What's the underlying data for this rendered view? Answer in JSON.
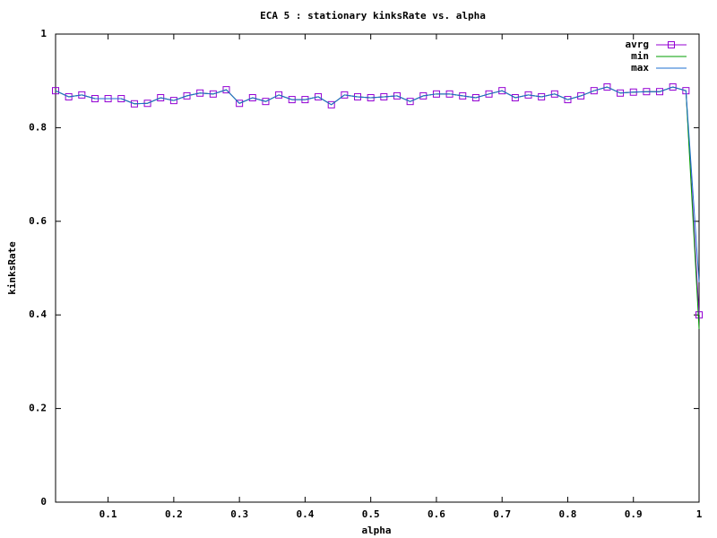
{
  "chart_data": {
    "type": "line",
    "title": "ECA 5 : stationary kinksRate vs. alpha",
    "x_label": "alpha",
    "y_label": "kinksRate",
    "x": [
      0.02,
      0.04,
      0.06,
      0.08,
      0.1,
      0.12,
      0.14,
      0.16,
      0.18,
      0.2,
      0.22,
      0.24,
      0.26,
      0.28,
      0.3,
      0.32,
      0.34,
      0.36,
      0.38,
      0.4,
      0.42,
      0.44,
      0.46,
      0.48,
      0.5,
      0.52,
      0.54,
      0.56,
      0.58,
      0.6,
      0.62,
      0.64,
      0.66,
      0.68,
      0.7,
      0.72,
      0.74,
      0.76,
      0.78,
      0.8,
      0.82,
      0.84,
      0.86,
      0.88,
      0.9,
      0.92,
      0.94,
      0.96,
      0.98,
      1
    ],
    "series": [
      {
        "name": "avrg",
        "color": "#9400d3",
        "marker": "square",
        "values": [
          0.879,
          0.866,
          0.87,
          0.862,
          0.862,
          0.862,
          0.851,
          0.852,
          0.864,
          0.858,
          0.868,
          0.874,
          0.872,
          0.881,
          0.852,
          0.864,
          0.856,
          0.87,
          0.86,
          0.86,
          0.866,
          0.849,
          0.87,
          0.866,
          0.864,
          0.866,
          0.868,
          0.856,
          0.868,
          0.872,
          0.872,
          0.868,
          0.864,
          0.872,
          0.879,
          0.864,
          0.87,
          0.866,
          0.872,
          0.86,
          0.868,
          0.879,
          0.887,
          0.874,
          0.876,
          0.877,
          0.877,
          0.887,
          0.879,
          0.4
        ]
      },
      {
        "name": "min",
        "color": "#009e00",
        "values": [
          0.879,
          0.866,
          0.87,
          0.862,
          0.862,
          0.862,
          0.851,
          0.852,
          0.864,
          0.858,
          0.868,
          0.874,
          0.872,
          0.881,
          0.852,
          0.864,
          0.856,
          0.87,
          0.86,
          0.86,
          0.866,
          0.849,
          0.87,
          0.866,
          0.864,
          0.866,
          0.868,
          0.856,
          0.868,
          0.872,
          0.872,
          0.868,
          0.864,
          0.872,
          0.879,
          0.864,
          0.87,
          0.866,
          0.872,
          0.86,
          0.868,
          0.879,
          0.887,
          0.874,
          0.876,
          0.877,
          0.877,
          0.887,
          0.879,
          0.37
        ]
      },
      {
        "name": "max",
        "color": "#1e6fd0",
        "values": [
          0.879,
          0.866,
          0.87,
          0.862,
          0.862,
          0.862,
          0.851,
          0.852,
          0.864,
          0.858,
          0.868,
          0.874,
          0.872,
          0.881,
          0.852,
          0.864,
          0.856,
          0.87,
          0.86,
          0.86,
          0.866,
          0.849,
          0.87,
          0.866,
          0.864,
          0.866,
          0.868,
          0.856,
          0.868,
          0.872,
          0.872,
          0.868,
          0.864,
          0.872,
          0.879,
          0.864,
          0.87,
          0.866,
          0.872,
          0.86,
          0.868,
          0.879,
          0.887,
          0.874,
          0.876,
          0.877,
          0.877,
          0.887,
          0.879,
          0.47
        ]
      }
    ],
    "xlim": [
      0.02,
      1
    ],
    "ylim": [
      0,
      1
    ],
    "xticks": [
      0.1,
      0.2,
      0.3,
      0.4,
      0.5,
      0.6,
      0.7,
      0.8,
      0.9,
      1
    ],
    "yticks": [
      0,
      0.2,
      0.4,
      0.6,
      0.8,
      1
    ],
    "legend": "top-right",
    "grid": false
  }
}
